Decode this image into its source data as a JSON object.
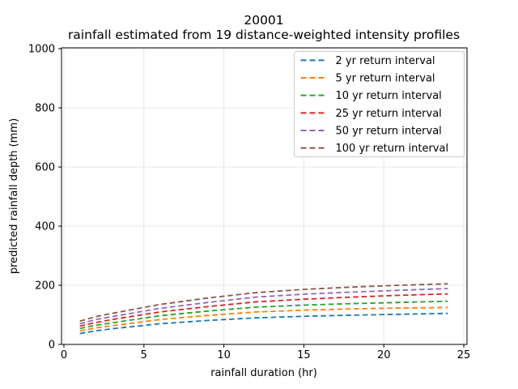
{
  "window": {
    "background": "#ffffff"
  },
  "chart_data": {
    "type": "line",
    "title": "20001",
    "subtitle": "rainfall estimated from 19 distance-weighted intensity profiles",
    "xlabel": "rainfall duration (hr)",
    "ylabel": "predicted rainfall depth (mm)",
    "xlim": [
      -0.15,
      25.2
    ],
    "ylim": [
      0,
      1003
    ],
    "x_ticks": [
      0,
      5,
      10,
      15,
      20,
      25
    ],
    "y_ticks": [
      0,
      200,
      400,
      600,
      800,
      1000
    ],
    "grid": true,
    "grid_color": "#e6e6e6",
    "line_style": "dashed",
    "legend_position": "upper right",
    "x": [
      1,
      2,
      3,
      6,
      9,
      12,
      15,
      18,
      21,
      24
    ],
    "series": [
      {
        "name": "2 yr return interval",
        "color": "#1f77b4",
        "values": [
          37,
          46,
          53,
          70,
          81,
          90,
          95,
          99,
          102,
          105
        ]
      },
      {
        "name": "5 yr return interval",
        "color": "#ff7f0e",
        "values": [
          46,
          56,
          63,
          84,
          98,
          110,
          116,
          120,
          123,
          125
        ]
      },
      {
        "name": "10 yr return interval",
        "color": "#2ca02c",
        "values": [
          54,
          65,
          73,
          97,
          113,
          126,
          133,
          138,
          142,
          146
        ]
      },
      {
        "name": "25 yr return interval",
        "color": "#d62728",
        "values": [
          62,
          74,
          84,
          110,
          128,
          144,
          153,
          160,
          166,
          171
        ]
      },
      {
        "name": "50 yr return interval",
        "color": "#9467bd",
        "values": [
          70,
          84,
          94,
          122,
          142,
          160,
          170,
          177,
          183,
          189
        ]
      },
      {
        "name": "100 yr return interval",
        "color": "#8c564b",
        "values": [
          79,
          94,
          105,
          135,
          157,
          175,
          186,
          194,
          200,
          205
        ]
      }
    ]
  }
}
